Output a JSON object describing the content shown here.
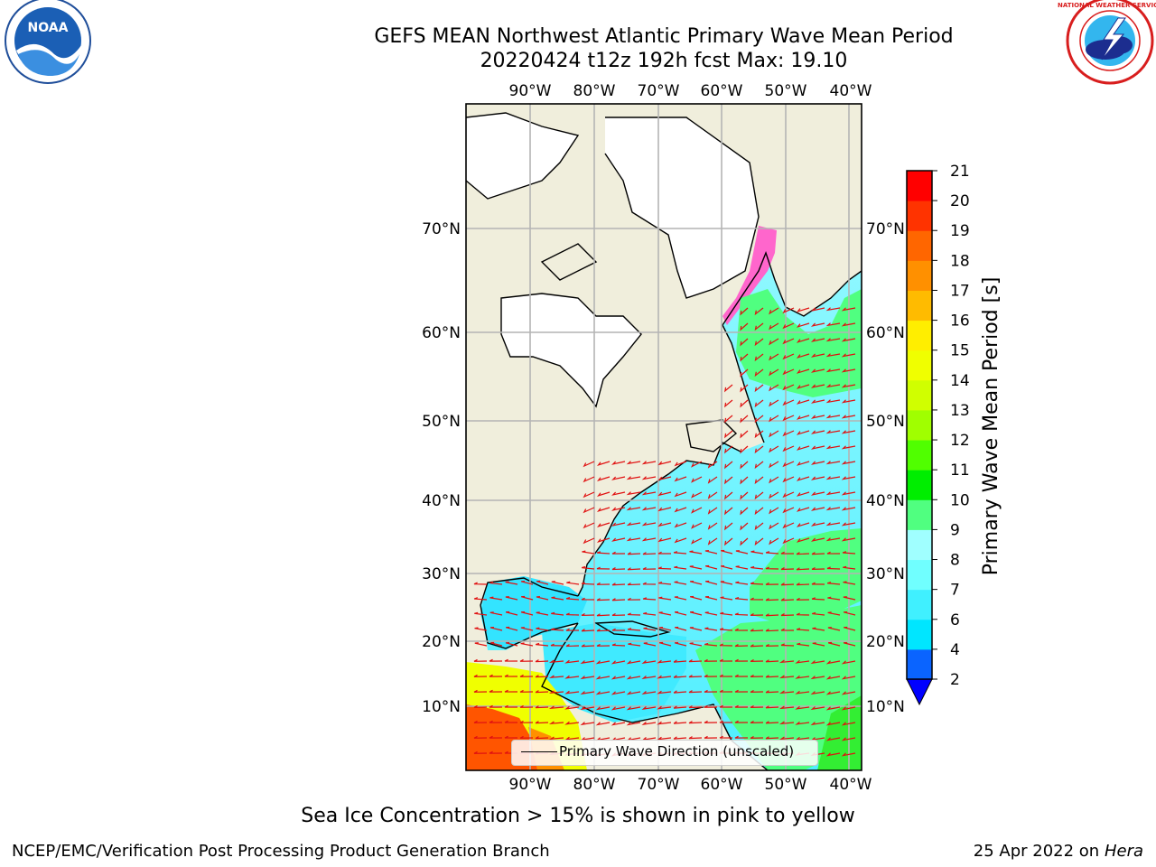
{
  "title": {
    "line1": "GEFS MEAN Northwest Atlantic Primary Wave Mean Period",
    "line2": "20220424 t12z 192h fcst   Max: 19.10"
  },
  "logos": {
    "left": "noara-logo",
    "left_ring_text": "NATIONAL OCEANIC AND ATMOSPHERIC ADMINISTRATION · U.S. DEPARTMENT OF COMMERCE",
    "left_center_text": "NOAA",
    "right": "nws-logo",
    "right_ring_text": "NATIONAL WEATHER SERVICE"
  },
  "map": {
    "lon_labels": [
      "90°W",
      "80°W",
      "70°W",
      "60°W",
      "50°W",
      "40°W"
    ],
    "lat_labels": [
      "10°N",
      "20°N",
      "30°N",
      "40°N",
      "50°N",
      "60°N",
      "70°N"
    ],
    "legend_label": "Primary Wave Direction (unscaled)"
  },
  "colorbar": {
    "label": "Primary Wave Mean Period [s]",
    "ticks": [
      "2",
      "4",
      "6",
      "7",
      "8",
      "9",
      "10",
      "11",
      "12",
      "13",
      "14",
      "15",
      "16",
      "17",
      "18",
      "19",
      "20",
      "21"
    ],
    "colors": [
      "#0a64ff",
      "#00e6ff",
      "#40f0ff",
      "#70ffff",
      "#a0ffff",
      "#50ff80",
      "#00ee00",
      "#50ff00",
      "#a0ff00",
      "#d0ff00",
      "#f0ff00",
      "#ffee00",
      "#ffbb00",
      "#ff9000",
      "#ff6600",
      "#ff3300",
      "#ff0000"
    ],
    "extend_color": "#0000ff"
  },
  "footer": {
    "ice_note": "Sea Ice Concentration > 15% is shown in pink to yellow",
    "credit": "NCEP/EMC/Verification Post Processing Product Generation Branch",
    "date": "25 Apr 2022 on",
    "machine": "Hera"
  }
}
